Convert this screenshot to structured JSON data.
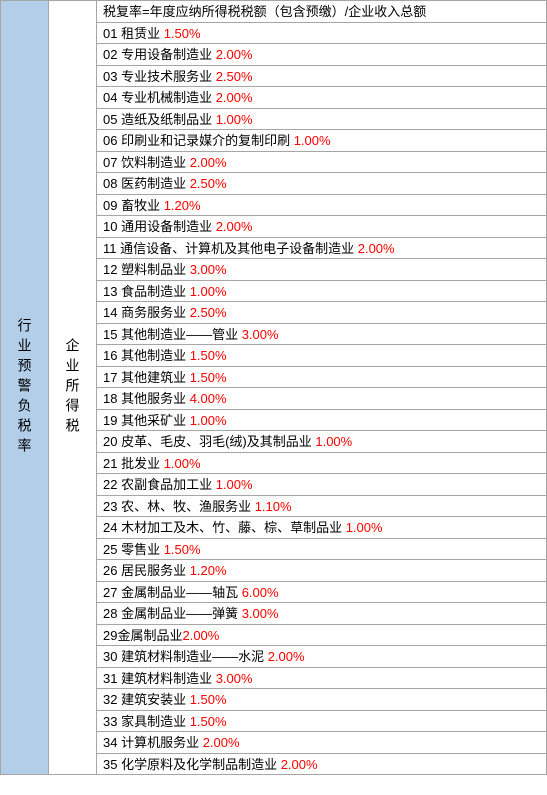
{
  "leftLabel": "行业预警负税率",
  "midLabel": "企业所得税",
  "formula": "税复率=年度应纳所得税税额（包含预缴）/企业收入总额",
  "rows": [
    {
      "num": "01",
      "name": "租赁业",
      "rate": "1.50%"
    },
    {
      "num": "02",
      "name": "专用设备制造业",
      "rate": "2.00%"
    },
    {
      "num": "03",
      "name": "专业技术服务业",
      "rate": "2.50%"
    },
    {
      "num": "04",
      "name": "专业机械制造业",
      "rate": "2.00%"
    },
    {
      "num": "05",
      "name": "造纸及纸制品业",
      "rate": "1.00%"
    },
    {
      "num": "06",
      "name": "印刷业和记录媒介的复制印刷",
      "rate": "1.00%"
    },
    {
      "num": "07",
      "name": "饮料制造业",
      "rate": "2.00%"
    },
    {
      "num": "08",
      "name": "医药制造业",
      "rate": "2.50%"
    },
    {
      "num": "09",
      "name": "畜牧业",
      "rate": "1.20%"
    },
    {
      "num": "10",
      "name": "通用设备制造业",
      "rate": "2.00%"
    },
    {
      "num": "11",
      "name": "通信设备、计算机及其他电子设备制造业",
      "rate": "2.00%"
    },
    {
      "num": "12",
      "name": "塑料制品业",
      "rate": "3.00%"
    },
    {
      "num": "13",
      "name": "食品制造业",
      "rate": "1.00%"
    },
    {
      "num": "14",
      "name": "商务服务业",
      "rate": "2.50%"
    },
    {
      "num": "15",
      "name": "其他制造业——管业",
      "rate": "3.00%"
    },
    {
      "num": "16",
      "name": "其他制造业",
      "rate": "1.50%"
    },
    {
      "num": "17",
      "name": "其他建筑业",
      "rate": "1.50%"
    },
    {
      "num": "18",
      "name": "其他服务业",
      "rate": "4.00%"
    },
    {
      "num": "19",
      "name": "其他采矿业",
      "rate": "1.00%"
    },
    {
      "num": "20",
      "name": "皮革、毛皮、羽毛(绒)及其制品业",
      "rate": "1.00%"
    },
    {
      "num": "21",
      "name": "批发业",
      "rate": "1.00%"
    },
    {
      "num": "22",
      "name": "农副食品加工业",
      "rate": "1.00%"
    },
    {
      "num": "23",
      "name": "农、林、牧、渔服务业",
      "rate": "1.10%"
    },
    {
      "num": "24",
      "name": "木材加工及木、竹、藤、棕、草制品业",
      "rate": "1.00%"
    },
    {
      "num": "25",
      "name": "零售业",
      "rate": "1.50%"
    },
    {
      "num": "26",
      "name": "居民服务业",
      "rate": "1.20%"
    },
    {
      "num": "27",
      "name": "金属制品业——轴瓦",
      "rate": "6.00%"
    },
    {
      "num": "28",
      "name": "金属制品业——弹簧",
      "rate": "3.00%"
    },
    {
      "num": "29",
      "name": "金属制品业",
      "rate": "2.00%",
      "nospace": true
    },
    {
      "num": "30",
      "name": "建筑材料制造业——水泥",
      "rate": "2.00%"
    },
    {
      "num": "31",
      "name": "建筑材料制造业",
      "rate": "3.00%"
    },
    {
      "num": "32",
      "name": "建筑安装业",
      "rate": "1.50%"
    },
    {
      "num": "33",
      "name": "家具制造业",
      "rate": "1.50%"
    },
    {
      "num": "34",
      "name": "计算机服务业",
      "rate": "2.00%"
    },
    {
      "num": "35",
      "name": "化学原料及化学制品制造业",
      "rate": "2.00%"
    }
  ],
  "colors": {
    "leftBg": "#b2cee8",
    "border": "#a6a6a6",
    "rate": "#ff0000",
    "text": "#000000",
    "bg": "#ffffff"
  }
}
